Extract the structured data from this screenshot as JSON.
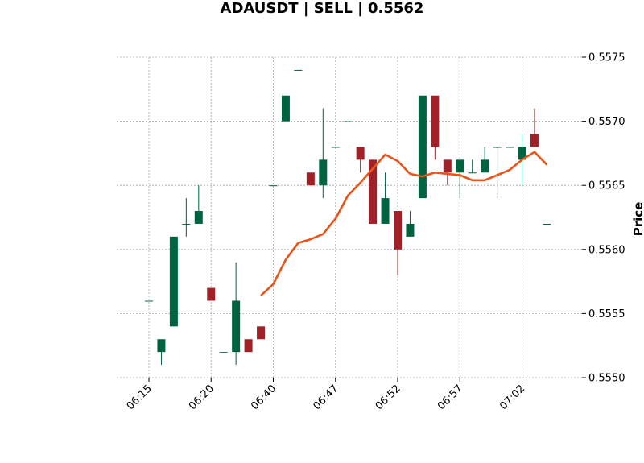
{
  "chart_data": {
    "type": "candlestick",
    "title": "ADAUSDT | SELL | 0.5562",
    "xlabel": "",
    "ylabel": "Price",
    "ylim": [
      0.555,
      0.5575
    ],
    "y_ticks": [
      "0.5550",
      "0.5555",
      "0.5560",
      "0.5565",
      "0.5570",
      "0.5575"
    ],
    "x_tick_labels": [
      "06:15",
      "06:20",
      "06:40",
      "06:47",
      "06:52",
      "06:57",
      "07:02"
    ],
    "x_tick_indices": [
      0,
      5,
      10,
      15,
      20,
      25,
      30
    ],
    "grid": true,
    "colors": {
      "up": "#006340",
      "down": "#a02128",
      "ma": "#e8541a",
      "grid": "#aaaaaa"
    },
    "candles": [
      {
        "o": 0.5556,
        "h": 0.5556,
        "l": 0.5556,
        "c": 0.5556
      },
      {
        "o": 0.5552,
        "h": 0.5553,
        "l": 0.5551,
        "c": 0.5553
      },
      {
        "o": 0.5554,
        "h": 0.5561,
        "l": 0.5554,
        "c": 0.5561
      },
      {
        "o": 0.5562,
        "h": 0.5564,
        "l": 0.5561,
        "c": 0.5562
      },
      {
        "o": 0.5562,
        "h": 0.5565,
        "l": 0.5562,
        "c": 0.5563
      },
      {
        "o": 0.5557,
        "h": 0.5557,
        "l": 0.5556,
        "c": 0.5556
      },
      {
        "o": 0.5552,
        "h": 0.5552,
        "l": 0.5552,
        "c": 0.5552
      },
      {
        "o": 0.5552,
        "h": 0.5559,
        "l": 0.5551,
        "c": 0.5556
      },
      {
        "o": 0.5553,
        "h": 0.5553,
        "l": 0.5552,
        "c": 0.5552
      },
      {
        "o": 0.5554,
        "h": 0.5554,
        "l": 0.5553,
        "c": 0.5553
      },
      {
        "o": 0.5565,
        "h": 0.5565,
        "l": 0.5565,
        "c": 0.5565
      },
      {
        "o": 0.557,
        "h": 0.5572,
        "l": 0.557,
        "c": 0.5572
      },
      {
        "o": 0.5574,
        "h": 0.5574,
        "l": 0.5574,
        "c": 0.5574
      },
      {
        "o": 0.5566,
        "h": 0.5566,
        "l": 0.5565,
        "c": 0.5565
      },
      {
        "o": 0.5565,
        "h": 0.5571,
        "l": 0.5564,
        "c": 0.5567
      },
      {
        "o": 0.5568,
        "h": 0.5568,
        "l": 0.5568,
        "c": 0.5568
      },
      {
        "o": 0.557,
        "h": 0.557,
        "l": 0.557,
        "c": 0.557
      },
      {
        "o": 0.5568,
        "h": 0.5568,
        "l": 0.5566,
        "c": 0.5567
      },
      {
        "o": 0.5567,
        "h": 0.5567,
        "l": 0.5562,
        "c": 0.5562
      },
      {
        "o": 0.5562,
        "h": 0.5566,
        "l": 0.5562,
        "c": 0.5564
      },
      {
        "o": 0.5563,
        "h": 0.5563,
        "l": 0.5558,
        "c": 0.556
      },
      {
        "o": 0.5561,
        "h": 0.5563,
        "l": 0.5561,
        "c": 0.5562
      },
      {
        "o": 0.5564,
        "h": 0.5572,
        "l": 0.5564,
        "c": 0.5572
      },
      {
        "o": 0.5572,
        "h": 0.5572,
        "l": 0.5567,
        "c": 0.5568
      },
      {
        "o": 0.5567,
        "h": 0.5567,
        "l": 0.5565,
        "c": 0.5566
      },
      {
        "o": 0.5566,
        "h": 0.5567,
        "l": 0.5564,
        "c": 0.5567
      },
      {
        "o": 0.5566,
        "h": 0.5567,
        "l": 0.5566,
        "c": 0.5566
      },
      {
        "o": 0.5566,
        "h": 0.5568,
        "l": 0.5566,
        "c": 0.5567
      },
      {
        "o": 0.5568,
        "h": 0.5568,
        "l": 0.5564,
        "c": 0.5568
      },
      {
        "o": 0.5568,
        "h": 0.5568,
        "l": 0.5568,
        "c": 0.5568
      },
      {
        "o": 0.5567,
        "h": 0.5569,
        "l": 0.5565,
        "c": 0.5568
      },
      {
        "o": 0.5569,
        "h": 0.5571,
        "l": 0.5568,
        "c": 0.5568
      },
      {
        "o": 0.5562,
        "h": 0.5562,
        "l": 0.5562,
        "c": 0.5562
      }
    ],
    "ma": [
      null,
      null,
      null,
      null,
      null,
      null,
      null,
      null,
      null,
      0.55564,
      0.55573,
      0.55592,
      0.55605,
      0.55608,
      0.55612,
      0.55624,
      0.55642,
      0.55652,
      0.55663,
      0.55674,
      0.55669,
      0.55659,
      0.55657,
      0.5566,
      0.55659,
      0.55658,
      0.55654,
      0.55654,
      0.55658,
      0.55662,
      0.5567,
      0.55676,
      0.55666
    ]
  }
}
